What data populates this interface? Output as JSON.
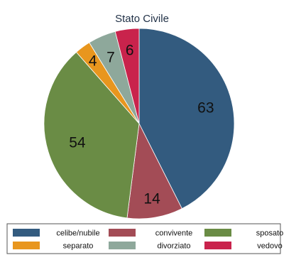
{
  "chart_data": {
    "type": "pie",
    "title": "Stato Civile",
    "slices": [
      {
        "label": "celibe/nubile",
        "value": 63,
        "color": "#335b7f"
      },
      {
        "label": "convivente",
        "value": 14,
        "color": "#a34c56"
      },
      {
        "label": "sposato",
        "value": 54,
        "color": "#6a8c45"
      },
      {
        "label": "separato",
        "value": 4,
        "color": "#e8961e"
      },
      {
        "label": "divorziato",
        "value": 7,
        "color": "#8ea89b"
      },
      {
        "label": "vedovo",
        "value": 6,
        "color": "#c9234c"
      }
    ],
    "data_labels_shown": [
      "63",
      "14",
      "54",
      "4",
      "7",
      "6"
    ],
    "legend_position": "bottom",
    "start_angle": "12 o'clock",
    "direction": "clockwise"
  }
}
